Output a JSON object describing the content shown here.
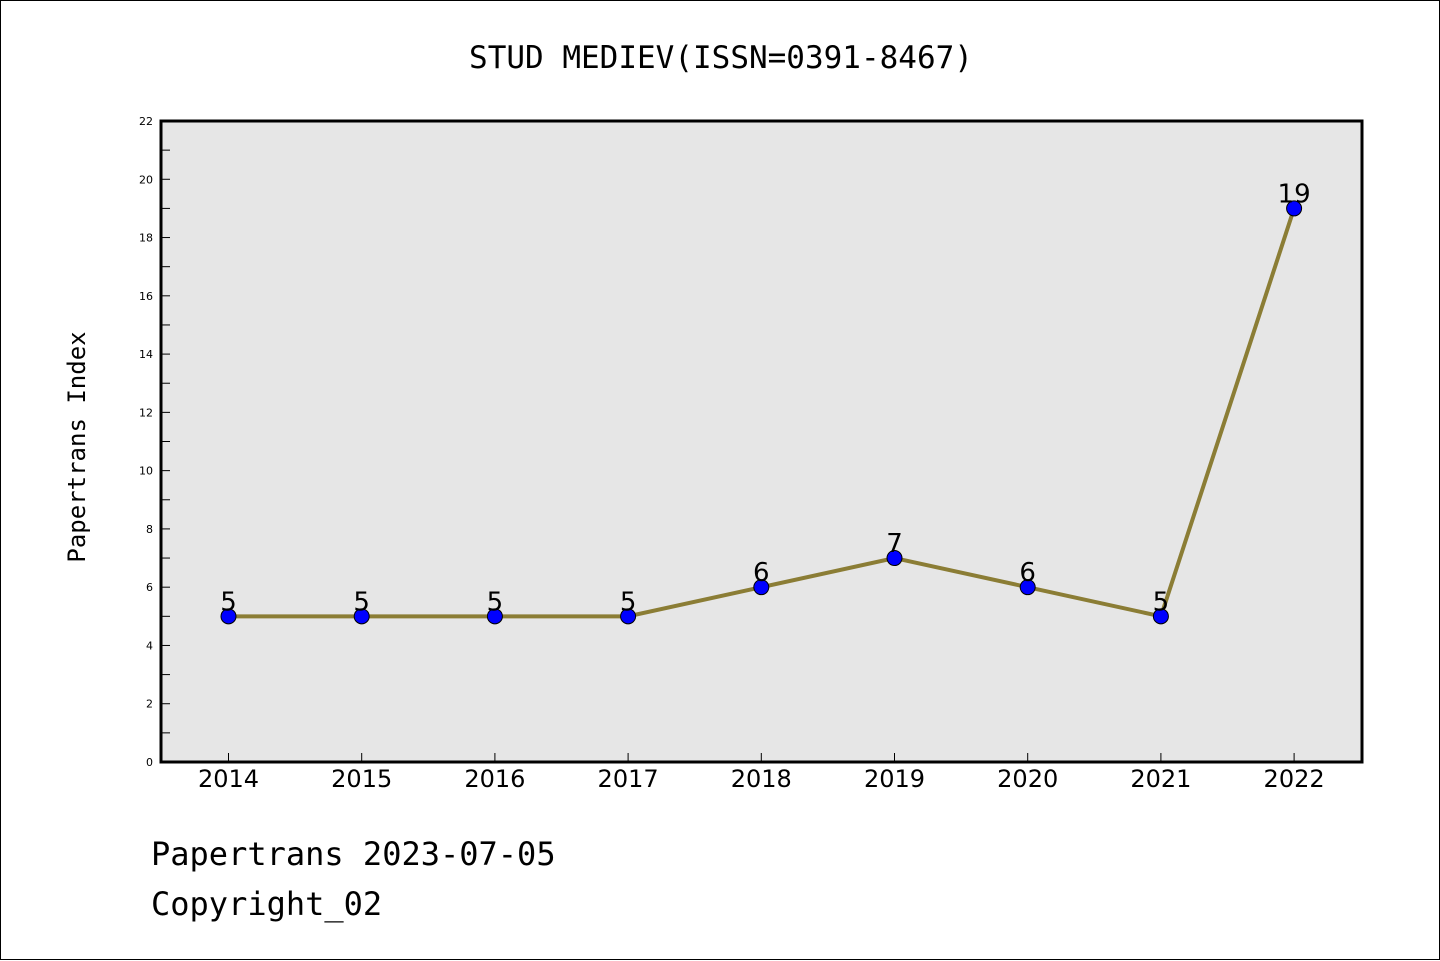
{
  "chart_data": {
    "type": "line",
    "title": "STUD MEDIEV(ISSN=0391-8467)",
    "ylabel": "Papertrans Index",
    "xlabel": "",
    "categories": [
      "2014",
      "2015",
      "2016",
      "2017",
      "2018",
      "2019",
      "2020",
      "2021",
      "2022"
    ],
    "values": [
      5,
      5,
      5,
      5,
      6,
      7,
      6,
      5,
      19
    ],
    "ylim": [
      0,
      22
    ],
    "yticks": [
      "0",
      "2",
      "4",
      "6",
      "8",
      "10",
      "12",
      "14",
      "16",
      "18",
      "20",
      "22"
    ],
    "grid": false,
    "line_color": "#8b7d35",
    "marker_color": "#0000ff",
    "plot_background": "#e6e6e6"
  },
  "footer": {
    "line1": "Papertrans 2023-07-05",
    "line2": "Copyright_02"
  }
}
